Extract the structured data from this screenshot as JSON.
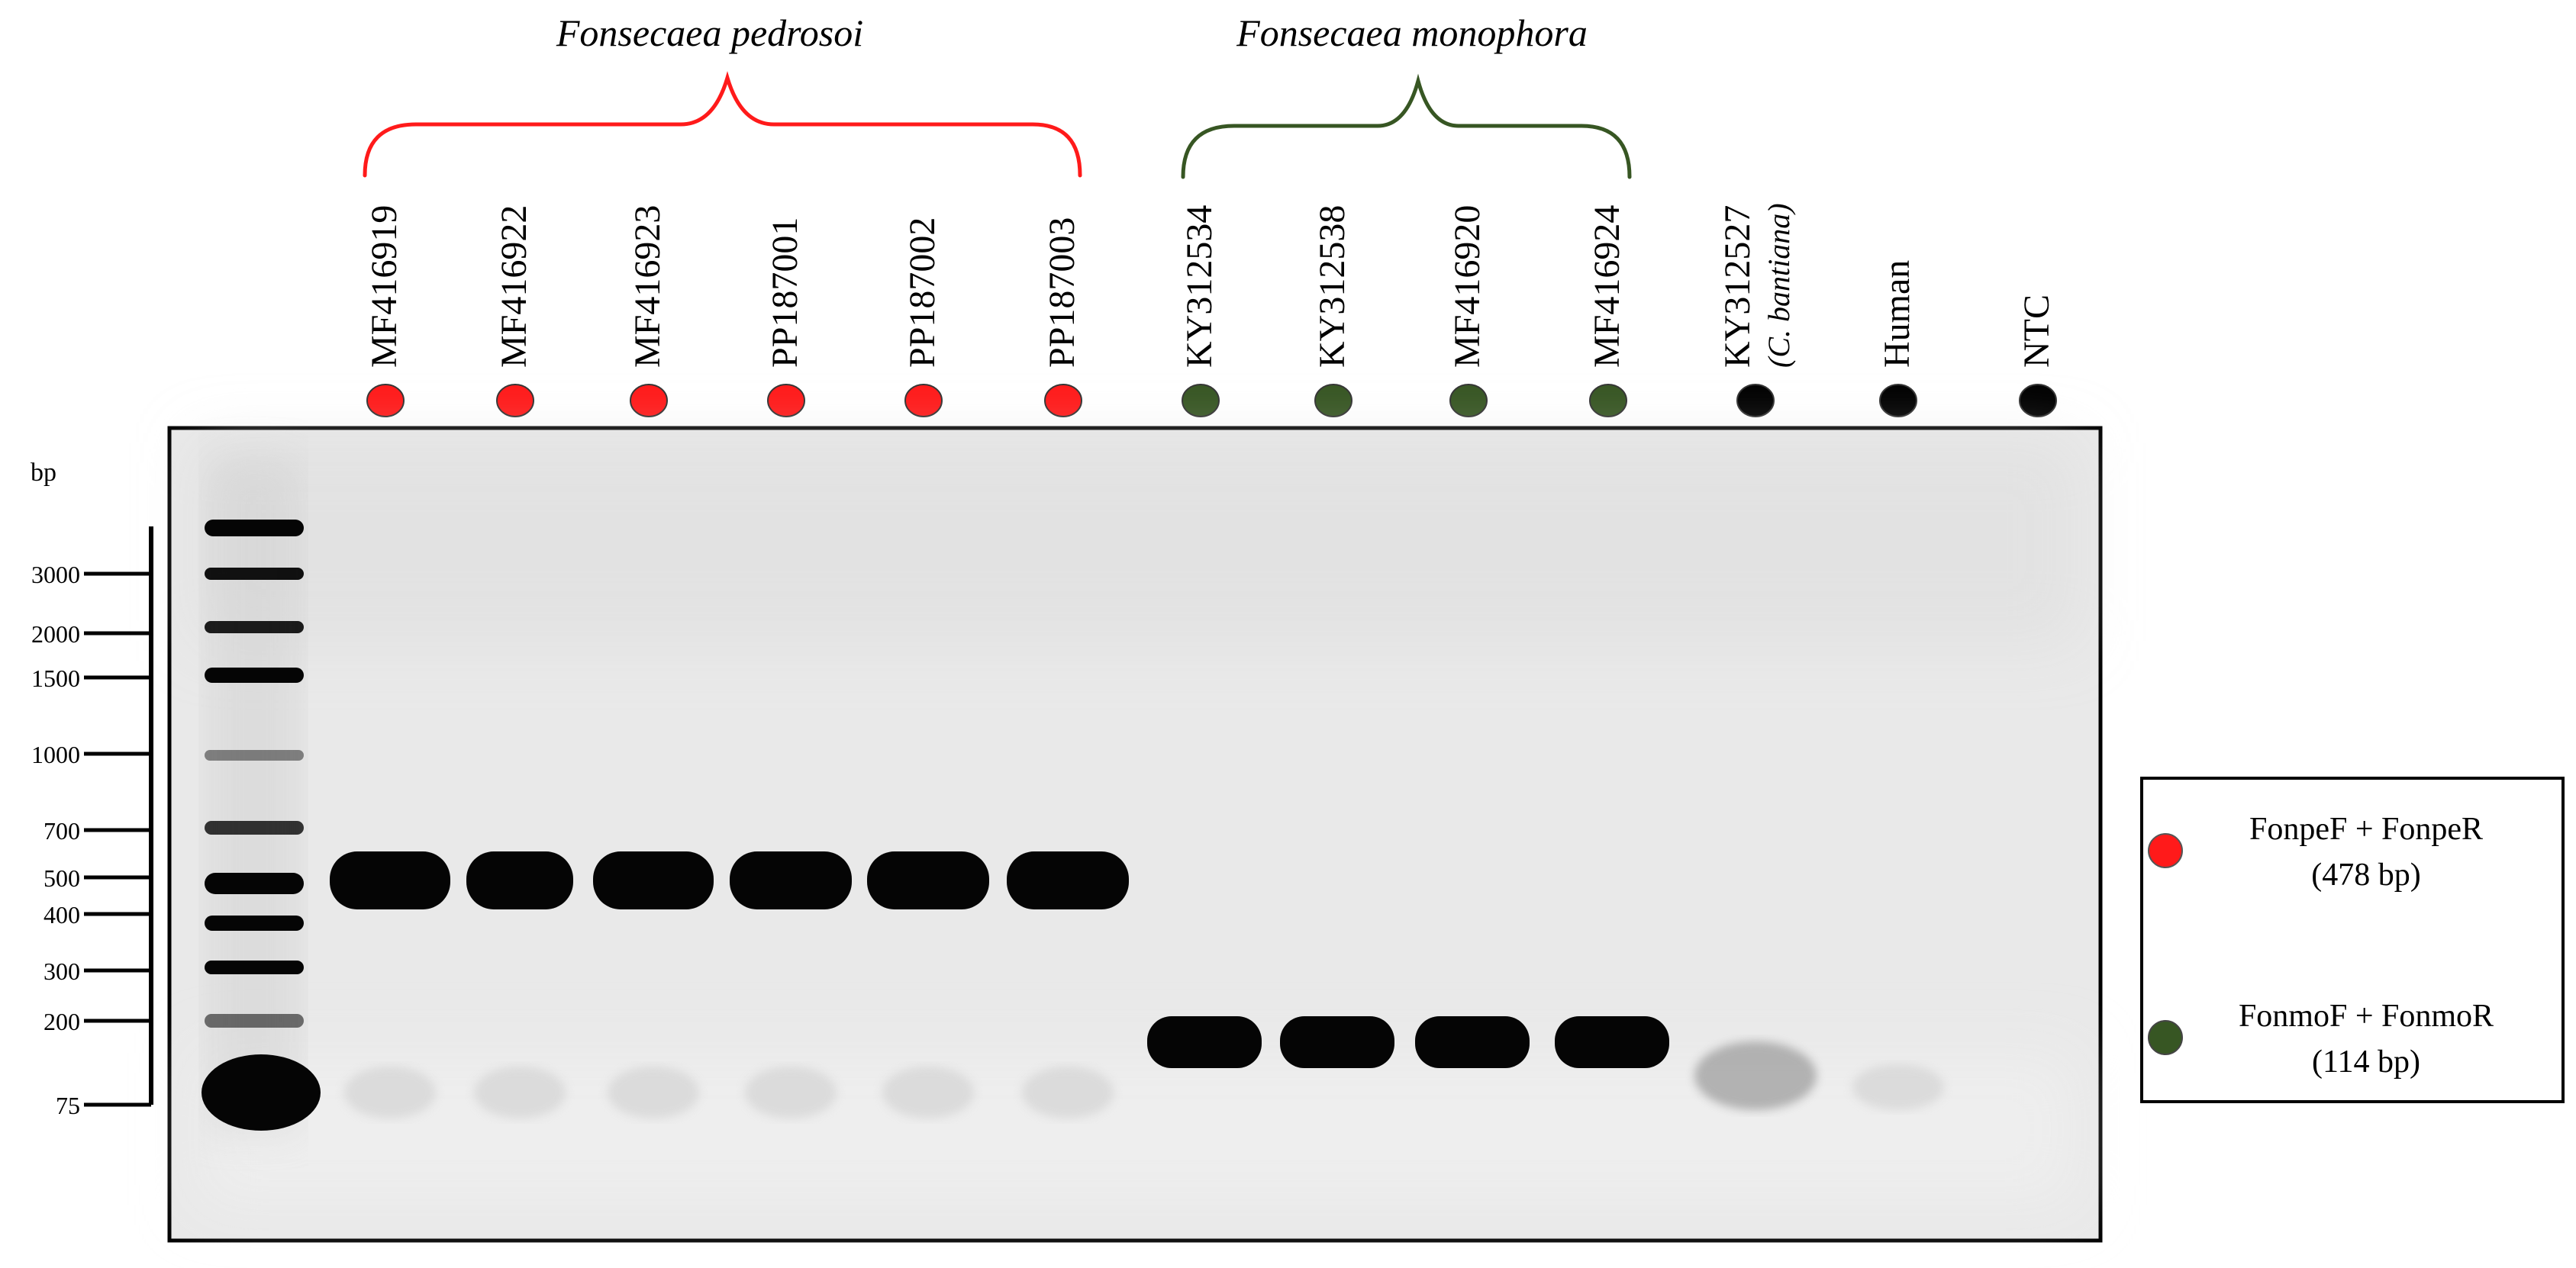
{
  "groups": [
    {
      "label": "Fonsecaea pedrosoi",
      "color": "#ff1a1a"
    },
    {
      "label": "Fonsecaea monophora",
      "color": "#375623"
    }
  ],
  "lanes": [
    {
      "label": "MF416919",
      "dot": "red",
      "band": "pedrosoi"
    },
    {
      "label": "MF416922",
      "dot": "red",
      "band": "pedrosoi"
    },
    {
      "label": "MF416923",
      "dot": "red",
      "band": "pedrosoi"
    },
    {
      "label": "PP187001",
      "dot": "red",
      "band": "pedrosoi"
    },
    {
      "label": "PP187002",
      "dot": "red",
      "band": "pedrosoi"
    },
    {
      "label": "PP187003",
      "dot": "red",
      "band": "pedrosoi"
    },
    {
      "label": "KY312534",
      "dot": "green",
      "band": "monophora"
    },
    {
      "label": "KY312538",
      "dot": "green",
      "band": "monophora"
    },
    {
      "label": "MF416920",
      "dot": "green",
      "band": "monophora"
    },
    {
      "label": "MF416924",
      "dot": "green",
      "band": "monophora"
    },
    {
      "label": "KY312527",
      "sublabel": "(C. bantiana)",
      "dot": "black",
      "band": "faint"
    },
    {
      "label": "Human",
      "dot": "black",
      "band": "none"
    },
    {
      "label": "NTC",
      "dot": "black",
      "band": "none"
    }
  ],
  "ladder": {
    "unit_label": "bp",
    "marks": [
      "3000",
      "2000",
      "1500",
      "1000",
      "700",
      "500",
      "400",
      "300",
      "200",
      "75"
    ]
  },
  "legend": {
    "items": [
      {
        "color": "red",
        "line1": "FonpeF + FonpeR",
        "line2": "(478 bp)"
      },
      {
        "color": "green",
        "line1": "FonmoF + FonmoR",
        "line2": "(114 bp)"
      }
    ]
  },
  "colors": {
    "red": "#ff1a1a",
    "green": "#375623",
    "black": "#000000",
    "gel": "#e9e9e9"
  }
}
